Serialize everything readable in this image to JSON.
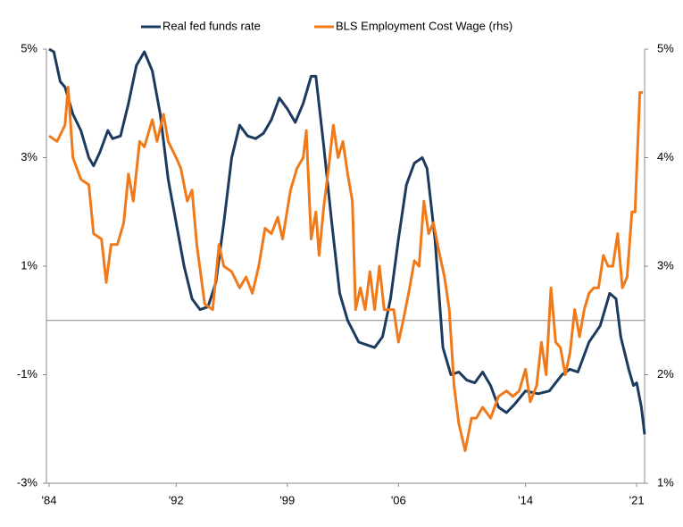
{
  "chart_data": {
    "type": "line",
    "legend": "top",
    "zero_line": true,
    "xlim": [
      1984,
      2021.5
    ],
    "xticks": [
      {
        "value": 1984,
        "label": "'84"
      },
      {
        "value": 1992,
        "label": "'92"
      },
      {
        "value": 1999,
        "label": "'99"
      },
      {
        "value": 2006,
        "label": "'06"
      },
      {
        "value": 2014,
        "label": "'14"
      },
      {
        "value": 2021,
        "label": "'21"
      }
    ],
    "ylim": [
      -3,
      5
    ],
    "yticks": [
      {
        "value": 5,
        "label": "5%"
      },
      {
        "value": 3,
        "label": "3%"
      },
      {
        "value": 1,
        "label": "1%"
      },
      {
        "value": -1,
        "label": "-1%"
      },
      {
        "value": -3,
        "label": "-3%"
      }
    ],
    "y2lim": [
      1,
      5
    ],
    "y2ticks": [
      {
        "value": 5,
        "label": "5%"
      },
      {
        "value": 4,
        "label": "4%"
      },
      {
        "value": 3,
        "label": "3%"
      },
      {
        "value": 2,
        "label": "2%"
      },
      {
        "value": 1,
        "label": "1%"
      }
    ],
    "series": [
      {
        "name": "Real fed funds rate",
        "color": "#1b3a5e",
        "x": [
          1984.0,
          1984.3,
          1984.7,
          1985.0,
          1985.5,
          1986.0,
          1986.5,
          1986.8,
          1987.2,
          1987.7,
          1988.0,
          1988.5,
          1989.0,
          1989.5,
          1990.0,
          1990.5,
          1991.0,
          1991.5,
          1992.0,
          1992.5,
          1993.0,
          1993.5,
          1994.0,
          1994.5,
          1995.0,
          1995.5,
          1996.0,
          1996.5,
          1997.0,
          1997.5,
          1998.0,
          1998.5,
          1999.0,
          1999.5,
          2000.0,
          2000.5,
          2000.8,
          2001.3,
          2001.8,
          2002.3,
          2002.8,
          2003.5,
          2004.0,
          2004.5,
          2005.0,
          2005.5,
          2006.0,
          2006.5,
          2007.0,
          2007.5,
          2007.8,
          2008.3,
          2008.8,
          2009.3,
          2009.8,
          2010.3,
          2010.8,
          2011.3,
          2011.8,
          2012.3,
          2012.8,
          2013.3,
          2014.0,
          2014.8,
          2015.5,
          2016.3,
          2016.8,
          2017.3,
          2018.0,
          2018.7,
          2019.3,
          2019.7,
          2020.0,
          2020.5,
          2020.8,
          2021.0,
          2021.3,
          2021.5
        ],
        "values": [
          5.0,
          4.95,
          4.4,
          4.3,
          3.8,
          3.5,
          3.0,
          2.85,
          3.1,
          3.5,
          3.35,
          3.4,
          4.0,
          4.7,
          4.95,
          4.6,
          3.8,
          2.6,
          1.8,
          1.0,
          0.4,
          0.2,
          0.25,
          0.7,
          1.8,
          3.0,
          3.6,
          3.4,
          3.35,
          3.45,
          3.7,
          4.1,
          3.9,
          3.65,
          4.0,
          4.5,
          4.5,
          3.2,
          1.8,
          0.5,
          0.0,
          -0.4,
          -0.45,
          -0.5,
          -0.3,
          0.4,
          1.5,
          2.5,
          2.9,
          3.0,
          2.8,
          1.5,
          -0.5,
          -1.0,
          -0.95,
          -1.1,
          -1.15,
          -0.95,
          -1.2,
          -1.6,
          -1.7,
          -1.55,
          -1.3,
          -1.35,
          -1.3,
          -1.0,
          -0.9,
          -0.95,
          -0.4,
          -0.1,
          0.5,
          0.4,
          -0.3,
          -0.9,
          -1.2,
          -1.15,
          -1.6,
          -2.1
        ]
      },
      {
        "name": "BLS Employment Cost Wage (rhs)",
        "color": "#f07a1a",
        "axis": "y2",
        "x": [
          1984.0,
          1984.5,
          1985.0,
          1985.2,
          1985.5,
          1986.0,
          1986.5,
          1986.8,
          1987.3,
          1987.6,
          1987.9,
          1988.3,
          1988.7,
          1989.0,
          1989.3,
          1989.7,
          1990.0,
          1990.5,
          1990.8,
          1991.2,
          1991.5,
          1992.0,
          1992.3,
          1992.7,
          1993.0,
          1993.3,
          1993.8,
          1994.3,
          1994.7,
          1995.0,
          1995.5,
          1996.0,
          1996.4,
          1996.8,
          1997.2,
          1997.6,
          1998.0,
          1998.4,
          1998.7,
          1999.2,
          1999.6,
          2000.0,
          2000.2,
          2000.5,
          2000.8,
          2001.0,
          2001.3,
          2001.6,
          2001.9,
          2002.2,
          2002.5,
          2002.8,
          2003.1,
          2003.3,
          2003.6,
          2003.9,
          2004.2,
          2004.5,
          2004.8,
          2005.1,
          2005.4,
          2005.7,
          2006.0,
          2006.3,
          2006.7,
          2007.0,
          2007.3,
          2007.6,
          2007.9,
          2008.2,
          2008.6,
          2008.9,
          2009.2,
          2009.5,
          2009.8,
          2010.2,
          2010.6,
          2010.9,
          2011.3,
          2011.8,
          2012.3,
          2012.8,
          2013.2,
          2013.6,
          2014.0,
          2014.3,
          2014.7,
          2015.0,
          2015.3,
          2015.6,
          2015.9,
          2016.2,
          2016.5,
          2016.8,
          2017.1,
          2017.4,
          2017.7,
          2018.0,
          2018.3,
          2018.6,
          2018.9,
          2019.2,
          2019.5,
          2019.8,
          2020.1,
          2020.4,
          2020.7,
          2020.9,
          2021.2,
          2021.4
        ],
        "values": [
          4.2,
          4.15,
          4.3,
          4.65,
          4.0,
          3.8,
          3.75,
          3.3,
          3.25,
          2.85,
          3.2,
          3.2,
          3.4,
          3.85,
          3.6,
          4.15,
          4.1,
          4.35,
          4.15,
          4.4,
          4.15,
          4.0,
          3.9,
          3.6,
          3.7,
          3.2,
          2.65,
          2.6,
          3.2,
          3.0,
          2.95,
          2.8,
          2.9,
          2.75,
          3.0,
          3.35,
          3.3,
          3.45,
          3.25,
          3.7,
          3.9,
          4.0,
          4.25,
          3.25,
          3.5,
          3.1,
          3.55,
          3.9,
          4.3,
          4.0,
          4.15,
          3.85,
          3.6,
          2.6,
          2.8,
          2.6,
          2.95,
          2.6,
          3.0,
          2.6,
          2.6,
          2.6,
          2.3,
          2.5,
          2.8,
          3.05,
          3.0,
          3.6,
          3.3,
          3.4,
          3.1,
          2.9,
          2.6,
          1.9,
          1.55,
          1.3,
          1.6,
          1.6,
          1.7,
          1.6,
          1.8,
          1.85,
          1.8,
          1.85,
          2.05,
          1.75,
          1.9,
          2.3,
          2.0,
          2.8,
          2.3,
          2.25,
          2.0,
          2.2,
          2.6,
          2.35,
          2.6,
          2.75,
          2.8,
          2.8,
          3.1,
          3.0,
          3.0,
          3.3,
          2.8,
          2.9,
          3.5,
          3.5,
          4.6,
          4.6
        ]
      }
    ]
  }
}
